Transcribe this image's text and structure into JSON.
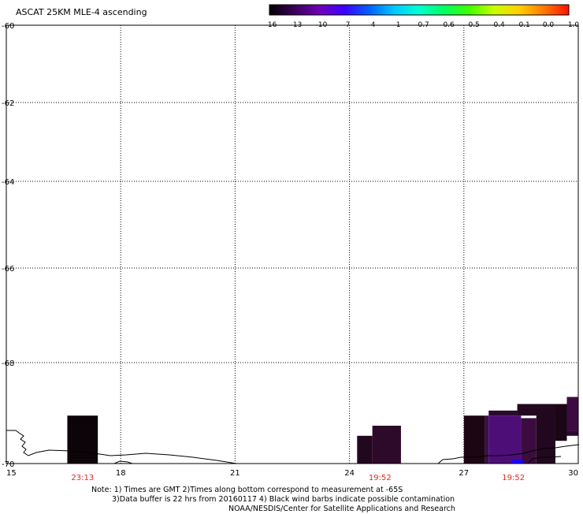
{
  "title": "ASCAT 25KM MLE-4 ascending",
  "colorbar": {
    "labels": [
      "-16",
      "-13",
      "-10",
      "-7",
      "-4",
      "-1",
      "-0.7",
      "-0.6",
      "-0.5",
      "-0.4",
      "-0.1",
      "0.0",
      "1.0"
    ],
    "colors": [
      "#000000",
      "#3a0058",
      "#7000b8",
      "#3c00ff",
      "#0060ff",
      "#00c8ff",
      "#00ffd0",
      "#00ff60",
      "#40ff00",
      "#c8ff00",
      "#ffd000",
      "#ff7800",
      "#ff1000"
    ]
  },
  "map": {
    "x_ticks": [
      "15",
      "18",
      "21",
      "24",
      "27",
      "30"
    ],
    "y_ticks": [
      "-60",
      "-62",
      "-64",
      "-66",
      "-68",
      "-70"
    ],
    "x_range": [
      15,
      30
    ],
    "y_range": [
      -70,
      -60
    ],
    "grid": "dotted"
  },
  "swath_times": [
    "23:13",
    "19:52",
    "19:52"
  ],
  "data_cells": [
    {
      "lon0": 16.6,
      "lon1": 17.4,
      "lat0": -70.0,
      "lat1": -69.05,
      "color": "#0c0408"
    },
    {
      "lon0": 24.2,
      "lon1": 24.6,
      "lat0": -70.0,
      "lat1": -69.45,
      "color": "#22081e"
    },
    {
      "lon0": 24.6,
      "lon1": 25.35,
      "lat0": -70.0,
      "lat1": -69.25,
      "color": "#2e0a2a"
    },
    {
      "lon0": 27.0,
      "lon1": 27.55,
      "lat0": -70.0,
      "lat1": -69.05,
      "color": "#1c0614"
    },
    {
      "lon0": 27.55,
      "lon1": 27.65,
      "lat0": -70.0,
      "lat1": -69.05,
      "color": "#3a1048"
    },
    {
      "lon0": 27.65,
      "lon1": 28.5,
      "lat0": -70.0,
      "lat1": -69.05,
      "color": "#4e0e78"
    },
    {
      "lon0": 27.65,
      "lon1": 28.4,
      "lat0": -69.05,
      "lat1": -68.95,
      "color": "#2a0a2e"
    },
    {
      "lon0": 28.5,
      "lon1": 28.9,
      "lat0": -70.0,
      "lat1": -69.1,
      "color": "#3c0c40"
    },
    {
      "lon0": 28.9,
      "lon1": 29.4,
      "lat0": -70.0,
      "lat1": -68.82,
      "color": "#22081e"
    },
    {
      "lon0": 28.4,
      "lon1": 29.4,
      "lat0": -69.05,
      "lat1": -68.82,
      "color": "#22081e"
    },
    {
      "lon0": 29.4,
      "lon1": 29.7,
      "lat0": -69.55,
      "lat1": -68.82,
      "color": "#1a0614"
    },
    {
      "lon0": 29.7,
      "lon1": 30.0,
      "lat0": -69.35,
      "lat1": -68.68,
      "color": "#3c0c40"
    },
    {
      "lon0": 29.7,
      "lon1": 30.0,
      "lat0": -69.45,
      "lat1": -69.35,
      "color": "#2a0a2e"
    },
    {
      "lon0": 28.25,
      "lon1": 28.55,
      "lat0": -70.0,
      "lat1": -69.92,
      "color": "#2000ff"
    }
  ],
  "note": {
    "line1": "Note: 1) Times are GMT 2)Times along bottom correspond to measurement at -65S",
    "line2": "3)Data buffer is 22 hrs from 20160117 4) Black wind barbs indicate possible contamination",
    "line3": "NOAA/NESDIS/Center for Satellite Applications and Research"
  }
}
